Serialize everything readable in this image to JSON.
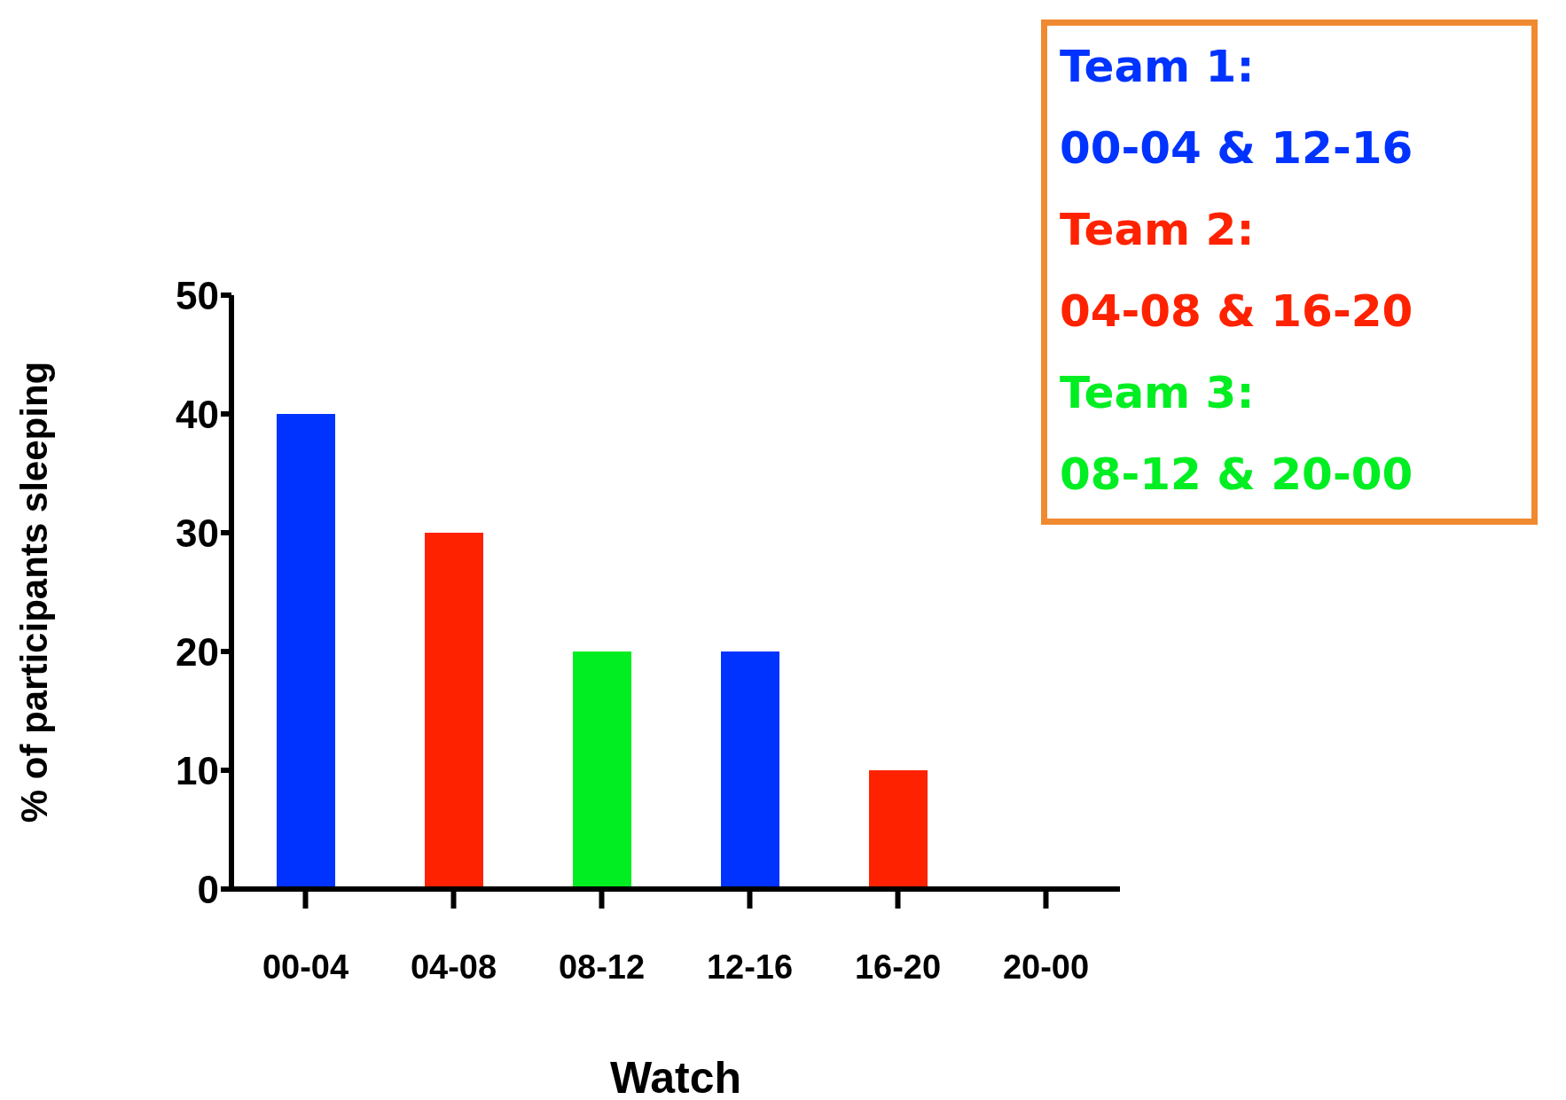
{
  "chart_data": {
    "type": "bar",
    "xlabel": "Watch",
    "ylabel": "% of participants sleeping",
    "categories": [
      "00-04",
      "04-08",
      "08-12",
      "12-16",
      "16-20",
      "20-00"
    ],
    "values": [
      40,
      30,
      20,
      20,
      10,
      0
    ],
    "colors": [
      "#0033ff",
      "#ff2200",
      "#00ee22",
      "#0033ff",
      "#ff2200",
      "#000000"
    ],
    "ylim": [
      0,
      50
    ],
    "yticks": [
      0,
      10,
      20,
      30,
      40,
      50
    ],
    "grid": false,
    "legend": false,
    "annotations": [
      "Team 1:",
      "00-04 & 12-16",
      "Team 2:",
      "04-08 & 16-20",
      "Team 3:",
      "08-12 & 20-00"
    ]
  }
}
